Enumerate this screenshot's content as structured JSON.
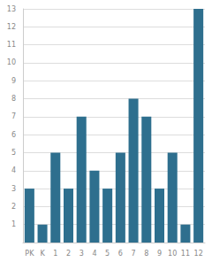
{
  "chart_data": {
    "type": "bar",
    "categories": [
      "PK",
      "K",
      "1",
      "2",
      "3",
      "4",
      "5",
      "6",
      "7",
      "8",
      "9",
      "10",
      "11",
      "12"
    ],
    "values": [
      3,
      1,
      5,
      3,
      7,
      4,
      3,
      5,
      8,
      7,
      3,
      5,
      1,
      13
    ],
    "color": "#2e6f8e",
    "ylim": [
      0,
      13
    ],
    "yticks": [
      1,
      2,
      3,
      4,
      5,
      6,
      7,
      8,
      9,
      10,
      11,
      12,
      13
    ],
    "grid": true
  }
}
